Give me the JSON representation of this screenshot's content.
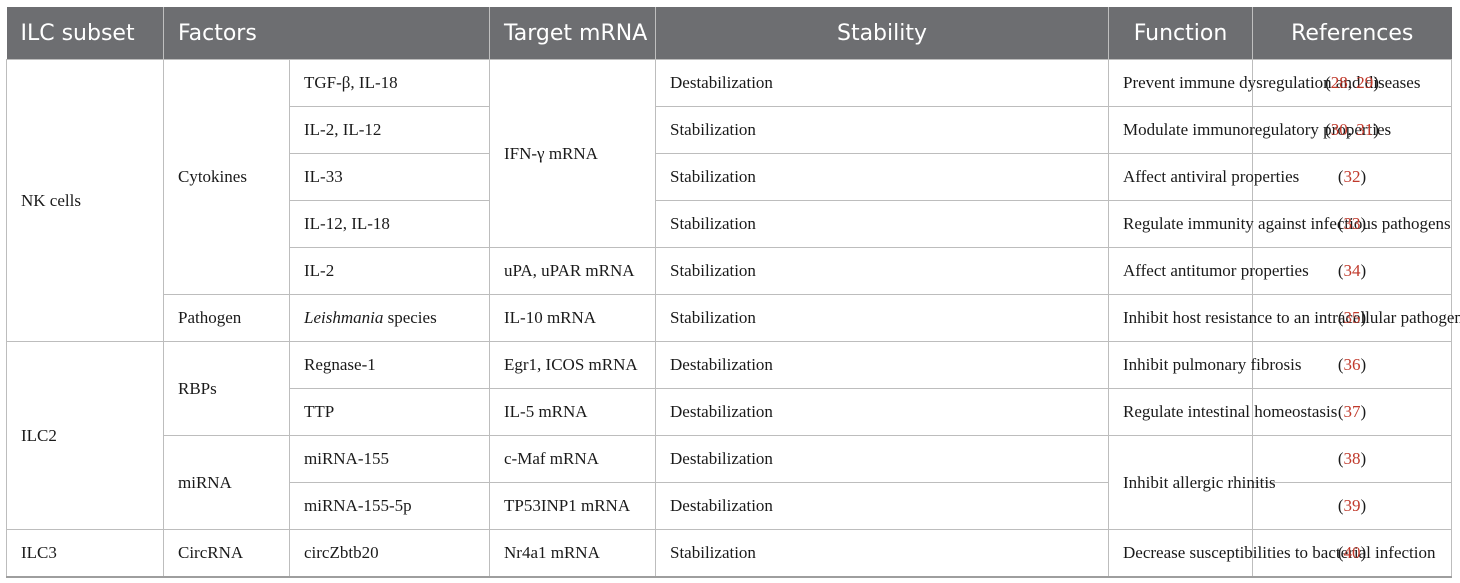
{
  "headers": [
    "ILC subset",
    "Factors",
    "Target mRNA",
    "Stability",
    "Function",
    "References"
  ],
  "groups": {
    "nk": "NK cells",
    "ilc2": "ILC2",
    "ilc3": "ILC3",
    "cytokines": "Cytokines",
    "pathogen": "Pathogen",
    "rbps": "RBPs",
    "mirna": "miRNA",
    "circrna": "CircRNA"
  },
  "rows": [
    {
      "factor": "TGF-β, IL-18",
      "target": "IFN-γ mRNA",
      "stability": "Destabilization",
      "function": "Prevent immune dysregulation and diseases",
      "refs": [
        "28",
        "29"
      ]
    },
    {
      "factor": "IL-2, IL-12",
      "stability": "Stabilization",
      "function": "Modulate immunoregulatory properties",
      "refs": [
        "30",
        "31"
      ]
    },
    {
      "factor": "IL-33",
      "stability": "Stabilization",
      "function": "Affect antiviral properties",
      "refs": [
        "32"
      ]
    },
    {
      "factor": "IL-12, IL-18",
      "stability": "Stabilization",
      "function": "Regulate immunity against infectious pathogens",
      "refs": [
        "33"
      ]
    },
    {
      "factor": "IL-2",
      "target": "uPA, uPAR mRNA",
      "stability": "Stabilization",
      "function": "Affect antitumor properties",
      "refs": [
        "34"
      ]
    },
    {
      "factor_italic": "Leishmania",
      "factor_rest": " species",
      "target": "IL-10 mRNA",
      "stability": "Stabilization",
      "function": "Inhibit host resistance to an intracellular pathogen",
      "refs": [
        "35"
      ]
    },
    {
      "factor": "Regnase-1",
      "target": "Egr1, ICOS mRNA",
      "stability": "Destabilization",
      "function": "Inhibit pulmonary fibrosis",
      "refs": [
        "36"
      ]
    },
    {
      "factor": "TTP",
      "target": "IL-5 mRNA",
      "stability": "Destabilization",
      "function": "Regulate intestinal homeostasis",
      "refs": [
        "37"
      ]
    },
    {
      "factor": "miRNA-155",
      "target": "c-Maf mRNA",
      "stability": "Destabilization",
      "function": "Inhibit allergic rhinitis",
      "refs": [
        "38"
      ]
    },
    {
      "factor": "miRNA-155-5p",
      "target": "TP53INP1 mRNA",
      "stability": "Destabilization",
      "refs": [
        "39"
      ]
    },
    {
      "factor": "circZbtb20",
      "target": "Nr4a1 mRNA",
      "stability": "Stabilization",
      "function": "Decrease susceptibilities to bacterial infection",
      "refs": [
        "40"
      ]
    }
  ],
  "colors": {
    "header_bg": "#6d6e71",
    "reference_link": "#c0392b",
    "border": "#bdbdbd"
  }
}
